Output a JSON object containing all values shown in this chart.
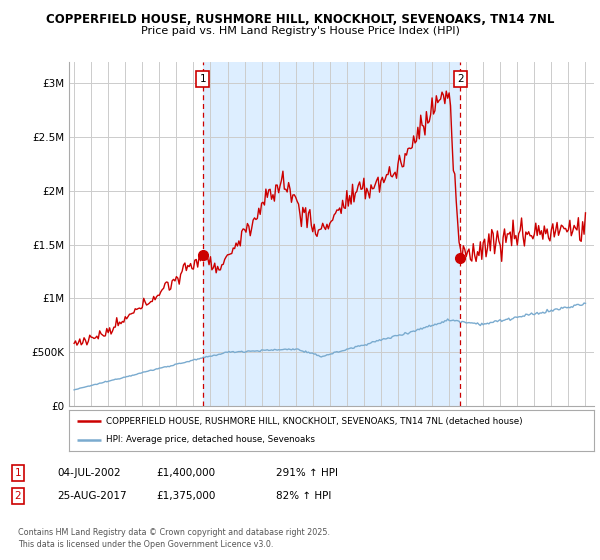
{
  "title1": "COPPERFIELD HOUSE, RUSHMORE HILL, KNOCKHOLT, SEVENOAKS, TN14 7NL",
  "title2": "Price paid vs. HM Land Registry's House Price Index (HPI)",
  "red_label": "COPPERFIELD HOUSE, RUSHMORE HILL, KNOCKHOLT, SEVENOAKS, TN14 7NL (detached house)",
  "blue_label": "HPI: Average price, detached house, Sevenoaks",
  "annotation1_label": "1",
  "annotation1_date": "04-JUL-2002",
  "annotation1_price": "£1,400,000",
  "annotation1_hpi": "291% ↑ HPI",
  "annotation2_label": "2",
  "annotation2_date": "25-AUG-2017",
  "annotation2_price": "£1,375,000",
  "annotation2_hpi": "82% ↑ HPI",
  "footer": "Contains HM Land Registry data © Crown copyright and database right 2025.\nThis data is licensed under the Open Government Licence v3.0.",
  "background_color": "#ffffff",
  "plot_bg_color": "#ffffff",
  "grid_color": "#cccccc",
  "red_color": "#cc0000",
  "blue_color": "#7aabcf",
  "vline_color": "#cc0000",
  "shade_color": "#ddeeff",
  "ylim": [
    0,
    3200000
  ],
  "yticks": [
    0,
    500000,
    1000000,
    1500000,
    2000000,
    2500000,
    3000000
  ],
  "ytick_labels": [
    "£0",
    "£500K",
    "£1M",
    "£1.5M",
    "£2M",
    "£2.5M",
    "£3M"
  ],
  "year_start": 1995,
  "year_end": 2025,
  "sale1_year": 2002.55,
  "sale1_price": 1400000,
  "sale2_year": 2017.65,
  "sale2_price": 1375000
}
